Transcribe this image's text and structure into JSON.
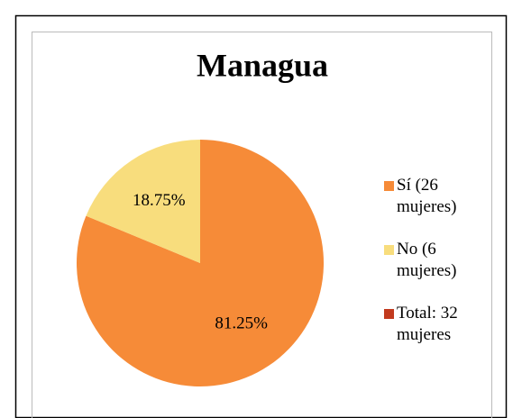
{
  "chart_data": {
    "type": "pie",
    "title": "Managua",
    "categories": [
      "Sí (26 mujeres)",
      "No (6 mujeres)",
      "Total: 32 mujeres"
    ],
    "values": [
      81.25,
      18.75,
      null
    ],
    "value_labels": [
      "81.25%",
      "18.75%",
      null
    ],
    "colors": [
      "#f68b38",
      "#f8dd7d",
      "#c23a1e"
    ],
    "legend": "right"
  }
}
